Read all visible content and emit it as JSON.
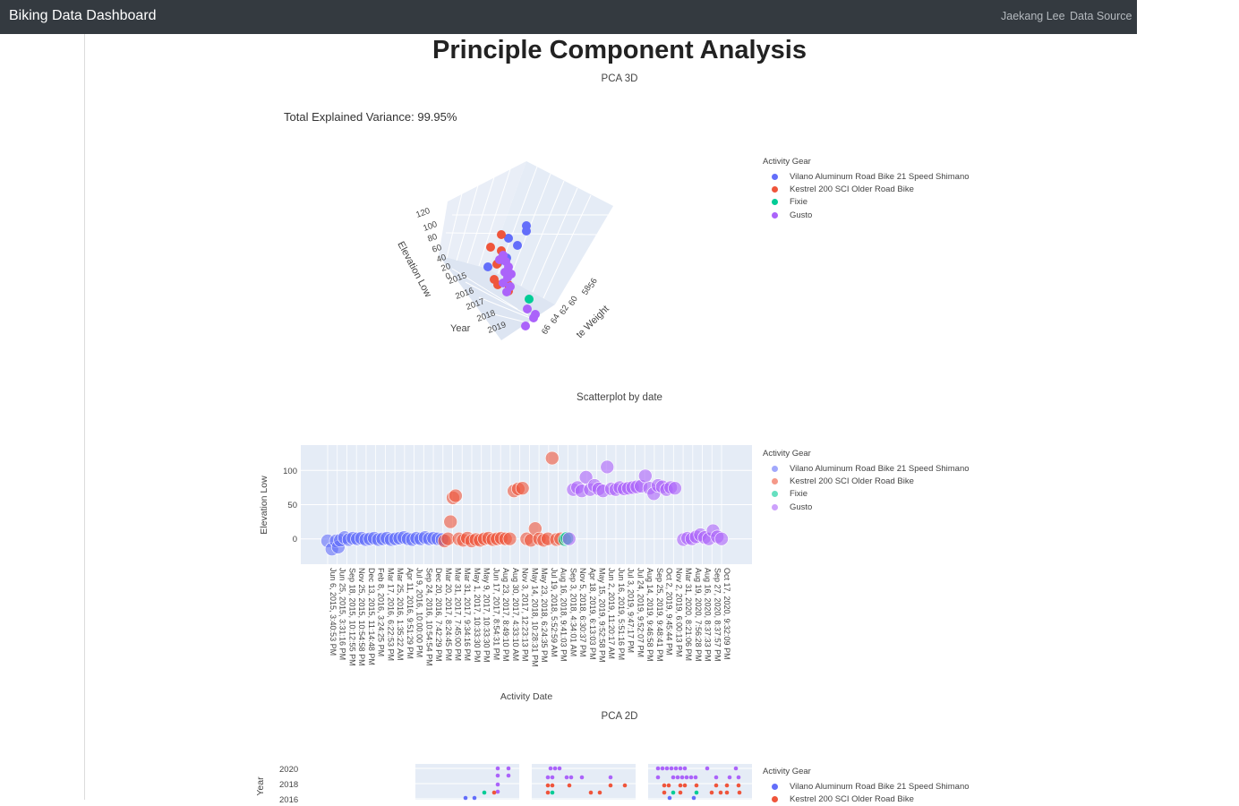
{
  "navbar": {
    "brand": "Biking Data Dashboard",
    "links": [
      "Jaekang Lee",
      "Data Source"
    ]
  },
  "page_title": "Principle Component Analysis",
  "legend": {
    "title": "Activity Gear",
    "items": [
      {
        "name": "Vilano Aluminum Road Bike 21 Speed Shimano",
        "color": "#636efa"
      },
      {
        "name": "Kestrel 200 SCI Older Road Bike",
        "color": "#ef553b"
      },
      {
        "name": "Fixie",
        "color": "#00cc96"
      },
      {
        "name": "Gusto",
        "color": "#ab63fa"
      }
    ]
  },
  "pca3d": {
    "title": "PCA 3D",
    "variance_text": "Total Explained Variance: 99.95%",
    "z_title": "Elevation Low",
    "z_ticks": [
      "120",
      "100",
      "80",
      "60",
      "40",
      "20",
      "0"
    ],
    "x_title": "Year",
    "x_ticks": [
      "2015",
      "2016",
      "2017",
      "2018",
      "2019"
    ],
    "y_title": "te Weight",
    "y_ticks": [
      "56",
      "58",
      "60",
      "62",
      "64",
      "66"
    ]
  },
  "chart_data": [
    {
      "type": "scatter",
      "title": "Scatterplot by date",
      "xlabel": "Activity Date",
      "ylabel": "Elevation Low",
      "yticks": [
        0,
        50,
        100
      ],
      "ylim": [
        -37,
        137
      ],
      "xticklabels": [
        "Jun 6, 2015, 3:40:53 PM",
        "Jun 25, 2015, 3:31:16 PM",
        "Sep 18, 2015, 10:12:55 PM",
        "Nov 25, 2015, 10:54:58 PM",
        "Dec 13, 2015, 11:14:48 PM",
        "Feb 8, 2016, 3:24:25 PM",
        "Mar 17, 2016, 6:22:53 PM",
        "Mar 25, 2016, 1:35:22 AM",
        "Apr 11, 2016, 9:51:29 PM",
        "Jul 9, 2016, 10:00:00 PM",
        "Sep 24, 2016, 10:54:54 PM",
        "Dec 20, 2016, 7:42:29 PM",
        "Mar 20, 2017, 8:24:45 PM",
        "Mar 31, 2017, 7:45:00 PM",
        "Mar 31, 2017, 9:34:16 PM",
        "May 1, 2017, 10:33:30 PM",
        "May 9, 2017, 10:33:30 PM",
        "Jun 17, 2017, 8:54:31 PM",
        "Aug 23, 2017, 8:49:10 PM",
        "Aug 30, 2017, 4:33:10 AM",
        "Nov 3, 2017, 12:23:13 PM",
        "May 14, 2018, 10:28:31 PM",
        "May 23, 2018, 6:24:35 PM",
        "Jul 19, 2018, 5:52:59 AM",
        "Aug 16, 2018, 9:41:03 PM",
        "Sep 3, 2018, 4:34:01 AM",
        "Nov 5, 2018, 6:30:37 PM",
        "Apr 18, 2019, 6:13:03 PM",
        "May 15, 2019, 9:52:58 PM",
        "Jun 2, 2019, 11:20:17 AM",
        "Jun 16, 2019, 5:51:16 PM",
        "Jul 3, 2019, 9:47:17 PM",
        "Jul 24, 2019, 9:52:07 PM",
        "Aug 14, 2019, 9:46:58 PM",
        "Sep 25, 2019, 9:48:41 PM",
        "Oct 2, 2019, 9:45:44 PM",
        "Nov 2, 2019, 6:00:13 PM",
        "Mar 31, 2020, 8:21:06 PM",
        "Aug 19, 2020, 7:56:28 PM",
        "Aug 16, 2020, 8:37:33 PM",
        "Sep 27, 2020, 8:37:57 PM",
        "Oct 17, 2020, 9:32:09 PM"
      ],
      "series": [
        {
          "name": "Vilano Aluminum Road Bike 21 Speed Shimano",
          "points": [
            [
              0,
              -3
            ],
            [
              1,
              -15
            ],
            [
              2,
              -3
            ],
            [
              2.5,
              -12
            ],
            [
              3,
              -2
            ],
            [
              4,
              2
            ],
            [
              5,
              -1
            ],
            [
              6,
              1
            ],
            [
              7,
              0
            ],
            [
              8,
              1
            ],
            [
              9,
              -1
            ],
            [
              10,
              0
            ],
            [
              11,
              1
            ],
            [
              12,
              -1
            ],
            [
              13,
              0
            ],
            [
              14,
              1
            ],
            [
              15,
              -1
            ],
            [
              16,
              0
            ],
            [
              17,
              1
            ],
            [
              18,
              2
            ],
            [
              19,
              0
            ],
            [
              20,
              -1
            ],
            [
              21,
              1
            ],
            [
              22,
              0
            ],
            [
              23,
              2
            ],
            [
              24,
              0
            ],
            [
              25,
              1
            ],
            [
              26,
              0
            ],
            [
              27,
              -1
            ]
          ]
        },
        {
          "name": "Kestrel 200 SCI Older Road Bike",
          "points": [
            [
              27.6,
              -3
            ],
            [
              28.4,
              0
            ],
            [
              29,
              25
            ],
            [
              29.6,
              60
            ],
            [
              30.2,
              63
            ],
            [
              31,
              0
            ],
            [
              32,
              -2
            ],
            [
              33,
              1
            ],
            [
              34,
              -3
            ],
            [
              35,
              -1
            ],
            [
              36,
              -2
            ],
            [
              37,
              0
            ],
            [
              38,
              1
            ],
            [
              39,
              -1
            ],
            [
              40,
              0
            ],
            [
              41,
              1
            ],
            [
              42,
              0
            ],
            [
              43,
              0
            ],
            [
              44,
              70
            ],
            [
              45,
              73
            ],
            [
              46,
              74
            ],
            [
              47,
              0
            ],
            [
              48,
              -2
            ],
            [
              49,
              15
            ],
            [
              50,
              0
            ],
            [
              51,
              -2
            ],
            [
              52,
              0
            ],
            [
              53,
              118
            ],
            [
              54,
              -1
            ],
            [
              55,
              0
            ]
          ]
        },
        {
          "name": "Fixie",
          "points": [
            [
              56,
              -1
            ],
            [
              56.5,
              1
            ]
          ]
        },
        {
          "name": "Gusto",
          "points": [
            [
              57,
              0
            ],
            [
              58,
              72
            ],
            [
              59,
              75
            ],
            [
              60,
              70
            ],
            [
              61,
              90
            ],
            [
              62,
              72
            ],
            [
              63,
              78
            ],
            [
              64,
              73
            ],
            [
              65,
              70
            ],
            [
              66,
              105
            ],
            [
              67,
              73
            ],
            [
              68,
              72
            ],
            [
              69,
              75
            ],
            [
              70,
              73
            ],
            [
              71,
              74
            ],
            [
              72,
              75
            ],
            [
              73,
              76
            ],
            [
              74,
              77
            ],
            [
              75,
              92
            ],
            [
              76,
              74
            ],
            [
              77,
              66
            ],
            [
              78,
              78
            ],
            [
              79,
              76
            ],
            [
              80,
              72
            ],
            [
              81,
              75
            ],
            [
              82,
              74
            ],
            [
              84,
              -1
            ],
            [
              85,
              1
            ],
            [
              86,
              0
            ],
            [
              87,
              3
            ],
            [
              88,
              6
            ],
            [
              89,
              2
            ],
            [
              90,
              0
            ],
            [
              91,
              12
            ],
            [
              92,
              3
            ],
            [
              93,
              0
            ]
          ]
        }
      ]
    }
  ],
  "scatter_title": "Scatterplot by date",
  "pca2d": {
    "title": "PCA 2D",
    "y_title": "Year",
    "y_ticks": [
      "2020",
      "2018",
      "2016"
    ]
  }
}
